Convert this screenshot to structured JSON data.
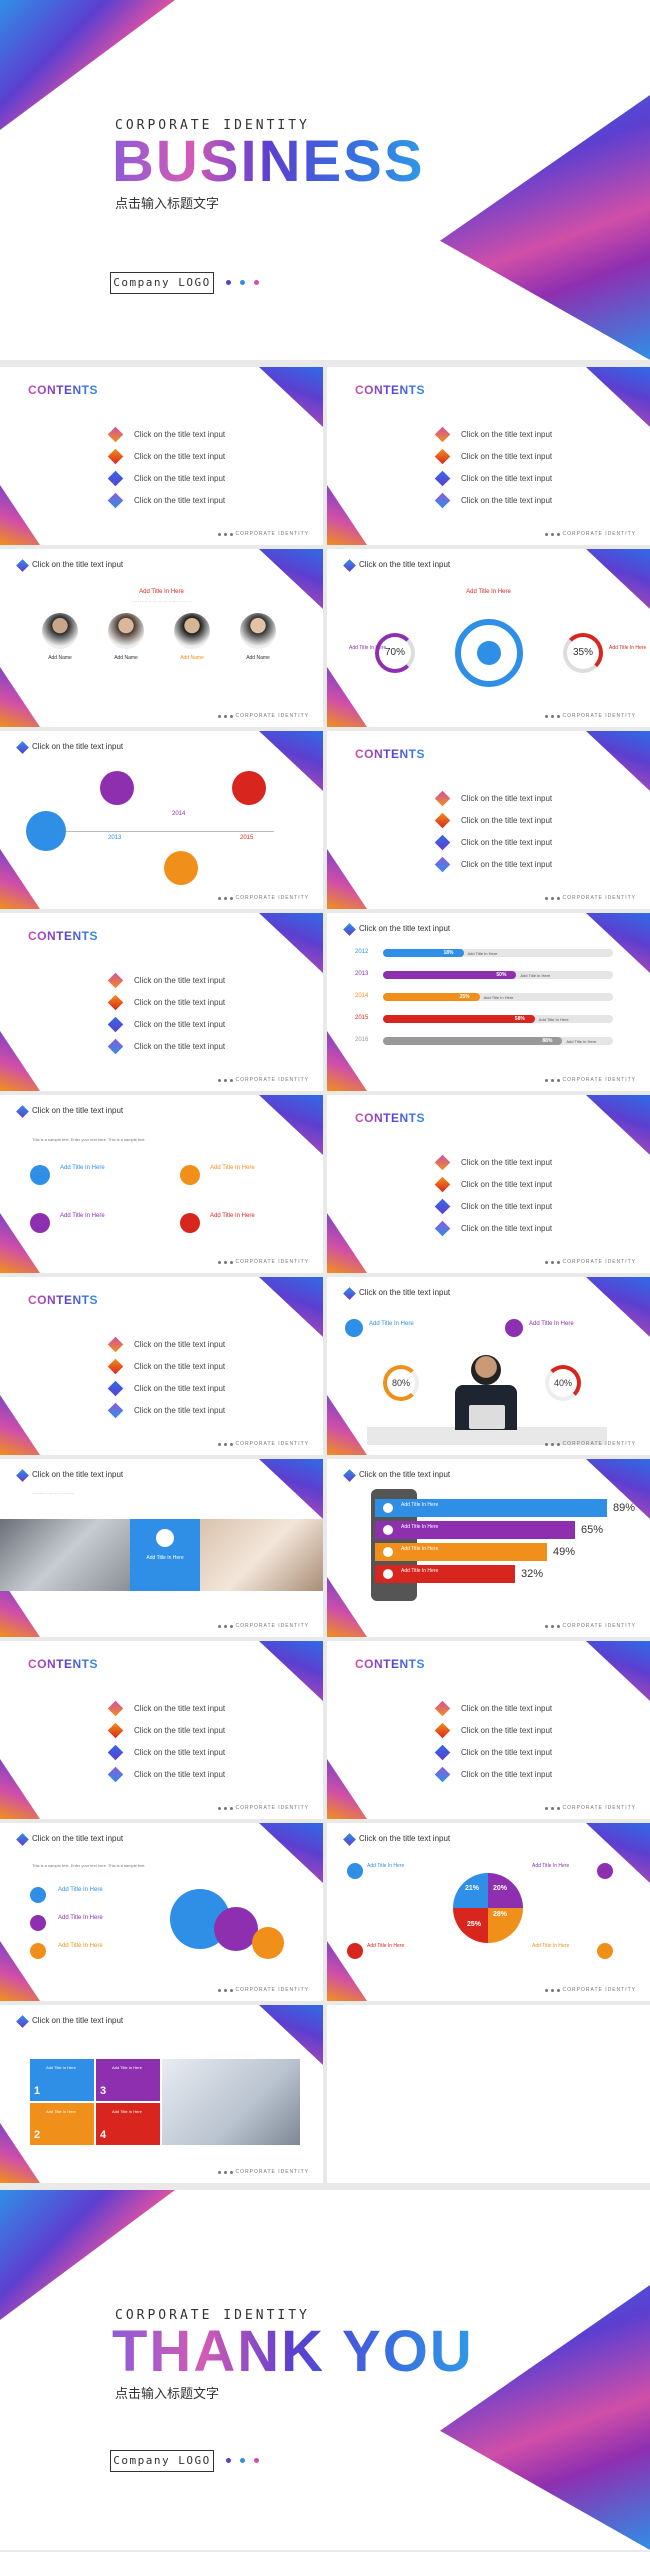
{
  "cover": {
    "subtitle_en": "CORPORATE IDENTITY",
    "title": "BUSINESS",
    "subtitle_cn": "点击输入标题文字",
    "logo": "Company LOGO"
  },
  "contents": {
    "title": "CONTENTS",
    "items": [
      "Click on the title text input",
      "Click on the title text input",
      "Click on the title text input",
      "Click on the title text input"
    ]
  },
  "footer": "CORPORATE IDENTITY",
  "slide_title": "Click on the title text input",
  "team": {
    "heading": "Add Title In Here",
    "members": [
      {
        "name": "Add Name",
        "color": "#2f8fe6"
      },
      {
        "name": "Add Name",
        "color": "#8e2fb0"
      },
      {
        "name": "Add Name",
        "color": "#f0901a"
      },
      {
        "name": "Add Name",
        "color": "#d8261e"
      }
    ]
  },
  "percent_slide": {
    "heading": "Add Title In Here",
    "left_title": "Add Title In Here",
    "right_title": "Add Title In Here",
    "left_value": "70%",
    "right_value": "35%"
  },
  "timeline": {
    "years": [
      "2013",
      "2014",
      "2015"
    ],
    "label": "Add Title In Here"
  },
  "bars": {
    "label": "Add Title In Here",
    "rows": [
      {
        "year": "2012",
        "pct": "18%",
        "color": "#2f8fe6",
        "value": 0.35
      },
      {
        "year": "2013",
        "pct": "50%",
        "color": "#8e2fb0",
        "value": 0.58
      },
      {
        "year": "2014",
        "pct": "25%",
        "color": "#f0901a",
        "value": 0.42
      },
      {
        "year": "2015",
        "pct": "58%",
        "color": "#d8261e",
        "value": 0.66
      },
      {
        "year": "2016",
        "pct": "88%",
        "color": "#999999",
        "value": 0.78
      }
    ]
  },
  "icons_slide": {
    "intro": "This is a sample text. Enter your text here. This is a sample text.",
    "item_title": "Add Title In Here"
  },
  "person_slide": {
    "item_title": "Add Title In Here",
    "left_value": "80%",
    "right_value": "40%"
  },
  "photo_slide": {
    "card_title": "Add Title In Here"
  },
  "phone_slide": {
    "row_title": "Add Title In Here",
    "values": [
      "89%",
      "65%",
      "49%",
      "32%"
    ]
  },
  "pie_slide": {
    "item_title": "Add Title In Here",
    "values": [
      "21%",
      "20%",
      "25%",
      "28%"
    ]
  },
  "tiles_slide": {
    "numbers": [
      "1",
      "2",
      "3",
      "4"
    ],
    "tile_title": "Add Title In Here"
  },
  "end": {
    "subtitle_en": "CORPORATE IDENTITY",
    "title": "THANK YOU",
    "subtitle_cn": "点击输入标题文字",
    "logo": "Company LOGO"
  }
}
